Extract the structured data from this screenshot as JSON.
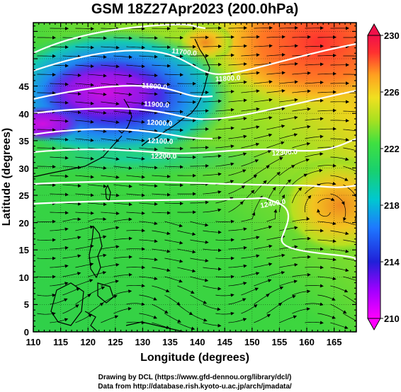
{
  "title": "GSM 18Z27Apr2023 (200.0hPa)",
  "x_axis": {
    "label": "Longitude (degrees)",
    "ticks": [
      "110",
      "115",
      "120",
      "125",
      "130",
      "135",
      "140",
      "145",
      "150",
      "155",
      "160",
      "165"
    ]
  },
  "y_axis": {
    "label": "Latitude (degrees)",
    "ticks": [
      "0",
      "5",
      "10",
      "15",
      "20",
      "25",
      "30",
      "35",
      "40",
      "45"
    ]
  },
  "colorbar": {
    "labels": [
      "230",
      "226",
      "222",
      "218",
      "214",
      "210"
    ],
    "colors": [
      "#ff00ff",
      "#8000ff",
      "#2020e0",
      "#1e90ff",
      "#00c8c8",
      "#20d060",
      "#40e040",
      "#a0e020",
      "#f0e020",
      "#ff9020",
      "#ff3030",
      "#f00050"
    ]
  },
  "contours": [
    {
      "label": "11700.0"
    },
    {
      "label": "11800.0"
    },
    {
      "label": "11900.0"
    },
    {
      "label": "12000.0"
    },
    {
      "label": "12100.0"
    },
    {
      "label": "12200.0"
    },
    {
      "label": "11800.0"
    },
    {
      "label": "12300.0"
    },
    {
      "label": "12400.0"
    }
  ],
  "credits": {
    "line1": "Drawing by DCL (https://www.gfd-dennou.org/library/dcl/)",
    "line2": "Data from http://database.rish.kyoto-u.ac.jp/arch/jmadata/"
  }
}
